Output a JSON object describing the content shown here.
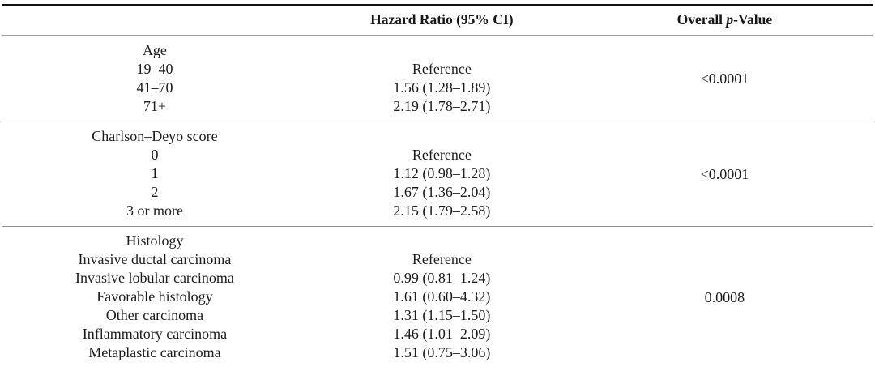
{
  "page": {
    "background": "#ffffff",
    "text_color": "#1c1c1c",
    "top_rule_color": "#111111",
    "header_rule_color": "#9c9c9c",
    "section_rule_color": "#8c8c8c"
  },
  "table": {
    "headers": {
      "variable": "",
      "hazard_ratio": "Hazard Ratio (95% CI)",
      "p_value_prefix": "Overall ",
      "p_value_italic": "p",
      "p_value_suffix": "-Value"
    },
    "sections": [
      {
        "group": "Age",
        "rows": [
          {
            "label": "19–40",
            "hr": "Reference"
          },
          {
            "label": "41–70",
            "hr": "1.56 (1.28–1.89)"
          },
          {
            "label": "71+",
            "hr": "2.19 (1.78–2.71)"
          }
        ],
        "p_value": "<0.0001"
      },
      {
        "group": "Charlson–Deyo score",
        "rows": [
          {
            "label": "0",
            "hr": "Reference"
          },
          {
            "label": "1",
            "hr": "1.12 (0.98–1.28)"
          },
          {
            "label": "2",
            "hr": "1.67 (1.36–2.04)"
          },
          {
            "label": "3 or more",
            "hr": "2.15 (1.79–2.58)"
          }
        ],
        "p_value": "<0.0001"
      },
      {
        "group": "Histology",
        "rows": [
          {
            "label": "Invasive ductal carcinoma",
            "hr": "Reference"
          },
          {
            "label": "Invasive lobular carcinoma",
            "hr": "0.99 (0.81–1.24)"
          },
          {
            "label": "Favorable histology",
            "hr": "1.61 (0.60–4.32)"
          },
          {
            "label": "Other carcinoma",
            "hr": "1.31 (1.15–1.50)"
          },
          {
            "label": "Inflammatory carcinoma",
            "hr": "1.46 (1.01–2.09)"
          },
          {
            "label": "Metaplastic carcinoma",
            "hr": "1.51 (0.75–3.06)"
          }
        ],
        "p_value": "0.0008"
      }
    ]
  }
}
